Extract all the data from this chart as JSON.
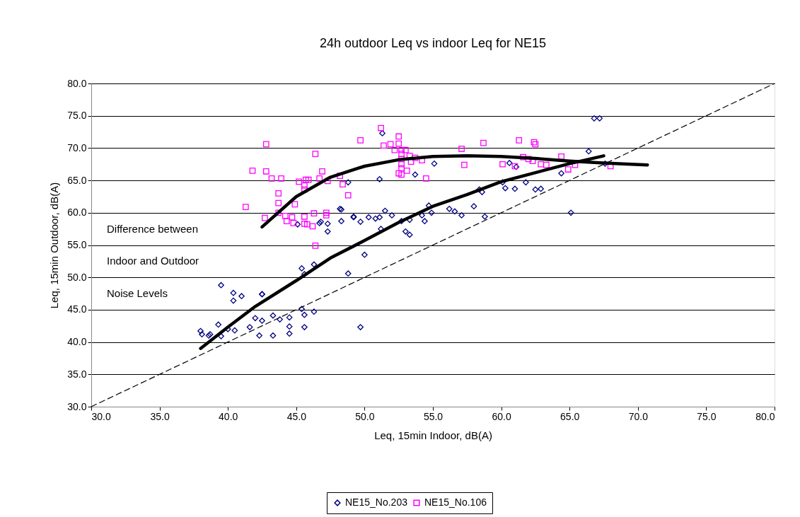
{
  "chart_data": {
    "type": "scatter",
    "title": "24h outdoor Leq vs indoor Leq for NE15",
    "xlabel": "Leq, 15min Indoor, dB(A)",
    "ylabel": "Leq, 15min Outdoor, dB(A)",
    "xlim": [
      30,
      80
    ],
    "ylim": [
      30,
      80
    ],
    "xticks": [
      {
        "value": 30,
        "label": "30.0"
      },
      {
        "value": 35,
        "label": "35.0"
      },
      {
        "value": 40,
        "label": "40.0"
      },
      {
        "value": 45,
        "label": "45.0"
      },
      {
        "value": 50,
        "label": "50.0"
      },
      {
        "value": 55,
        "label": "55.0"
      },
      {
        "value": 60,
        "label": "60.0"
      },
      {
        "value": 65,
        "label": "65.0"
      },
      {
        "value": 70,
        "label": "70.0"
      },
      {
        "value": 75,
        "label": "75.0"
      },
      {
        "value": 80,
        "label": "80.0"
      }
    ],
    "yticks": [
      {
        "value": 30,
        "label": "30.0"
      },
      {
        "value": 35,
        "label": "35.0"
      },
      {
        "value": 40,
        "label": "40.0"
      },
      {
        "value": 45,
        "label": "45.0"
      },
      {
        "value": 50,
        "label": "50.0"
      },
      {
        "value": 55,
        "label": "55.0"
      },
      {
        "value": 60,
        "label": "60.0"
      },
      {
        "value": 65,
        "label": "65.0"
      },
      {
        "value": 70,
        "label": "70.0"
      },
      {
        "value": 75,
        "label": "75.0"
      },
      {
        "value": 80,
        "label": "80.0"
      }
    ],
    "grid": "y",
    "legend": "bottom",
    "annotations": [
      "Difference between Indoor and Outdoor Noise Levels"
    ],
    "series": [
      {
        "name": "NE15_No.203",
        "marker": "diamond",
        "color": "#000080",
        "x": [
          38.0,
          38.1,
          38.6,
          38.7,
          39.3,
          39.5,
          39.5,
          40.0,
          40.4,
          40.4,
          41.0,
          40.5,
          41.6,
          42.0,
          42.3,
          42.5,
          42.5,
          43.3,
          43.3,
          43.8,
          44.5,
          44.5,
          44.5,
          45.4,
          45.6,
          45.6,
          46.3,
          45.4,
          45.6,
          46.3,
          42.5,
          45.1,
          46.7,
          46.8,
          47.3,
          48.2,
          48.3,
          48.3,
          48.8,
          48.8,
          49.2,
          47.3,
          49.2,
          49.7,
          50.3,
          50.8,
          51.1,
          51.5,
          52.0,
          51.2,
          52.7,
          53.3,
          53.0,
          53.3,
          54.2,
          54.4,
          54.7,
          54.9,
          56.2,
          56.6,
          57.1,
          58.0,
          58.8,
          58.4,
          58.6,
          60.1,
          60.3,
          61.0,
          61.8,
          62.5,
          62.9,
          60.6,
          61.1,
          64.4,
          50.0,
          49.7,
          51.3,
          51.1,
          55.1,
          53.7,
          66.8,
          67.2,
          66.4,
          65.1,
          67.6
        ],
        "values": [
          41.7,
          41.2,
          41.0,
          41.2,
          42.7,
          48.8,
          40.9,
          42.0,
          47.6,
          46.4,
          47.1,
          41.8,
          42.3,
          43.7,
          41.0,
          43.3,
          47.4,
          44.1,
          41.0,
          43.5,
          43.8,
          42.4,
          41.3,
          45.1,
          44.2,
          42.3,
          44.7,
          51.4,
          50.5,
          52.0,
          47.4,
          58.2,
          58.4,
          58.6,
          58.3,
          60.6,
          60.5,
          58.7,
          64.7,
          50.6,
          59.4,
          57.1,
          59.3,
          58.6,
          59.3,
          59.1,
          59.3,
          60.3,
          59.6,
          57.5,
          58.7,
          58.9,
          57.1,
          56.6,
          59.6,
          58.7,
          61.1,
          60.0,
          60.6,
          60.2,
          59.6,
          61.0,
          59.4,
          63.6,
          63.2,
          64.7,
          63.8,
          63.7,
          64.7,
          63.6,
          63.7,
          67.7,
          67.1,
          66.1,
          53.5,
          42.3,
          72.3,
          65.2,
          67.6,
          65.9,
          74.6,
          74.6,
          69.5,
          60.0,
          67.6
        ]
      },
      {
        "name": "NE15_No.106",
        "marker": "square",
        "color": "#ff00ff",
        "x": [
          42.8,
          46.4,
          41.8,
          42.8,
          43.2,
          43.9,
          46.9,
          46.7,
          47.3,
          45.2,
          45.7,
          45.9,
          45.6,
          45.6,
          48.2,
          48.4,
          48.8,
          43.7,
          43.7,
          44.9,
          41.3,
          43.7,
          42.7,
          44.2,
          44.7,
          44.3,
          44.8,
          45.6,
          45.6,
          45.8,
          46.2,
          46.3,
          47.2,
          47.2,
          46.4,
          49.7,
          51.2,
          51.4,
          51.9,
          52.5,
          52.5,
          52.2,
          52.7,
          53.0,
          52.7,
          52.7,
          53.3,
          53.7,
          53.4,
          54.2,
          52.7,
          52.7,
          53.1,
          52.5,
          52.7,
          54.5,
          57.1,
          57.3,
          58.7,
          60.1,
          61.3,
          62.4,
          62.5,
          61.6,
          62.0,
          62.3,
          62.9,
          63.3,
          64.4,
          61.0,
          64.9,
          65.4,
          68.0
        ],
        "values": [
          70.6,
          69.1,
          66.5,
          66.4,
          65.3,
          65.3,
          66.4,
          65.3,
          64.9,
          64.8,
          65.1,
          65.1,
          64.2,
          63.6,
          65.7,
          64.4,
          62.7,
          63.0,
          61.5,
          61.3,
          60.9,
          60.0,
          59.2,
          59.5,
          59.3,
          58.7,
          58.4,
          59.4,
          58.3,
          58.2,
          57.9,
          59.9,
          60.0,
          59.6,
          54.9,
          71.2,
          73.1,
          70.4,
          70.6,
          71.8,
          70.7,
          69.7,
          69.7,
          69.7,
          69.1,
          68.3,
          68.8,
          68.5,
          67.9,
          68.1,
          67.5,
          66.9,
          66.5,
          66.1,
          65.9,
          65.3,
          69.9,
          67.4,
          70.8,
          67.5,
          71.2,
          70.9,
          70.6,
          68.6,
          68.3,
          68.0,
          67.5,
          67.4,
          68.7,
          67.2,
          66.7,
          67.4,
          67.2
        ]
      },
      {
        "type": "line",
        "color": "#000000",
        "line_style": "solid",
        "x": [
          42.5,
          45.0,
          47.5,
          50.0,
          52.5,
          55.0,
          57.5,
          60.0,
          62.5,
          65.0,
          67.5,
          70.7
        ],
        "values": [
          57.8,
          62.5,
          65.5,
          67.2,
          68.2,
          68.7,
          68.8,
          68.7,
          68.4,
          68.0,
          67.7,
          67.4
        ]
      },
      {
        "type": "line",
        "color": "#000000",
        "line_style": "solid",
        "x": [
          38.0,
          40.0,
          42.0,
          45.0,
          47.5,
          50.0,
          52.5,
          55.0,
          57.5,
          60.0,
          62.5,
          65.0,
          67.5
        ],
        "values": [
          39.0,
          42.3,
          45.5,
          49.5,
          53.0,
          55.7,
          58.5,
          61.0,
          62.8,
          64.8,
          66.2,
          67.6,
          68.8
        ]
      },
      {
        "type": "line",
        "color": "#000000",
        "line_style": "dashed",
        "x": [
          30,
          80
        ],
        "values": [
          30,
          80
        ]
      }
    ]
  }
}
